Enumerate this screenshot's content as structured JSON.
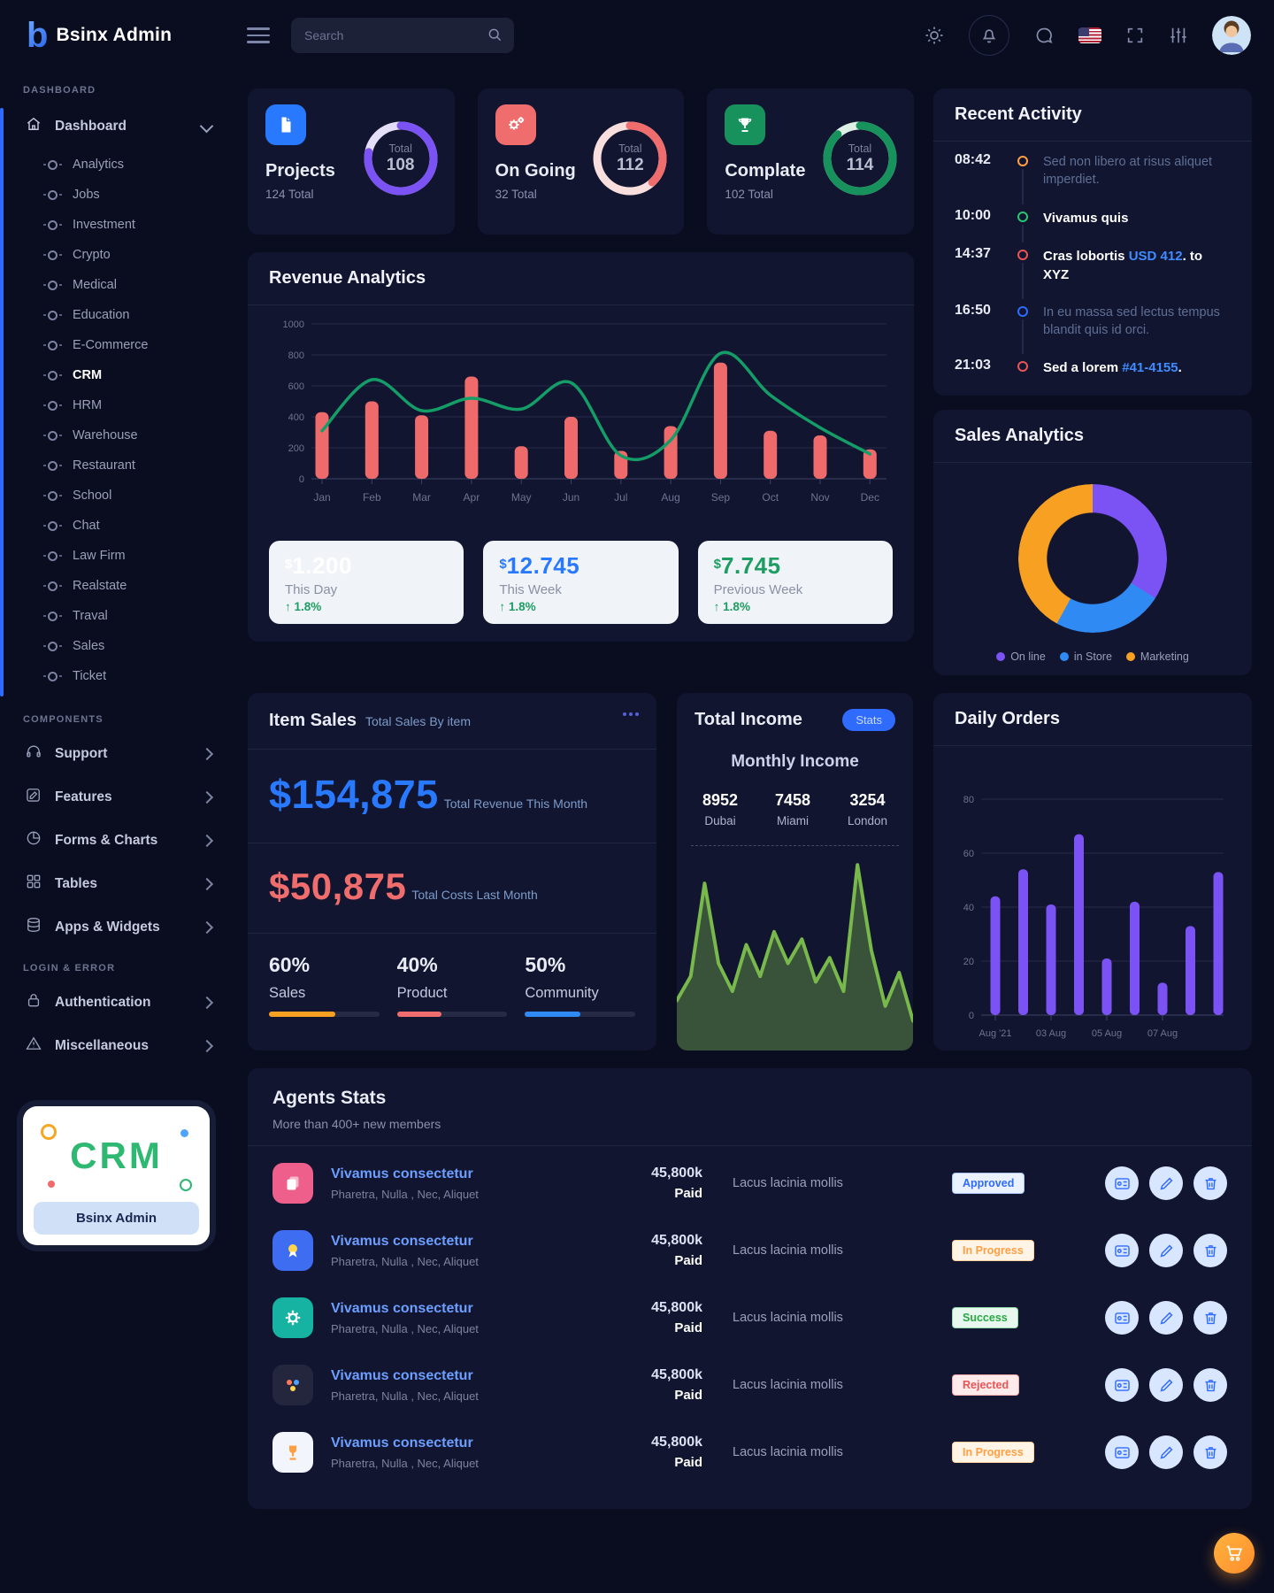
{
  "topbar": {
    "logo_letter": "b",
    "logo_text": "Bsinx Admin",
    "search_placeholder": "Search"
  },
  "sidebar": {
    "section_dashboard": "DASHBOARD",
    "dashboard_label": "Dashboard",
    "dashboard_items": [
      "Analytics",
      "Jobs",
      "Investment",
      "Crypto",
      "Medical",
      "Education",
      "E-Commerce",
      "CRM",
      "HRM",
      "Warehouse",
      "Restaurant",
      "School",
      "Chat",
      "Law Firm",
      "Realstate",
      "Traval",
      "Sales",
      "Ticket"
    ],
    "active_item": "CRM",
    "section_components": "COMPONENTS",
    "component_items": [
      "Support",
      "Features",
      "Forms & Charts",
      "Tables",
      "Apps & Widgets"
    ],
    "section_login": "LOGIN & ERROR",
    "login_items": [
      "Authentication",
      "Miscellaneous"
    ],
    "promo_title": "CRM",
    "promo_caption": "Bsinx Admin"
  },
  "stat_cards": [
    {
      "title": "Projects",
      "subtitle": "124 Total",
      "donut_label": "Total",
      "donut_value": "108",
      "color": "#7b52f4",
      "track": "#e4def9",
      "icon_bg": "#2979ff",
      "percent": 78
    },
    {
      "title": "On Going",
      "subtitle": "32 Total",
      "donut_label": "Total",
      "donut_value": "112",
      "color": "#f06d6d",
      "track": "#f9dede",
      "icon_bg": "#f06d6d",
      "percent": 38
    },
    {
      "title": "Complate",
      "subtitle": "102 Total",
      "donut_label": "Total",
      "donut_value": "114",
      "color": "#18925c",
      "track": "#def0e6",
      "icon_bg": "#18925c",
      "percent": 88
    }
  ],
  "revenue": {
    "title": "Revenue Analytics",
    "chart": {
      "type": "bar+line",
      "months": [
        "Jan",
        "Feb",
        "Mar",
        "Apr",
        "May",
        "Jun",
        "Jul",
        "Aug",
        "Sep",
        "Oct",
        "Nov",
        "Dec"
      ],
      "yticks": [
        0,
        200,
        400,
        600,
        800,
        1000
      ],
      "bars": [
        430,
        500,
        410,
        660,
        210,
        400,
        180,
        340,
        750,
        310,
        280,
        190
      ],
      "line": [
        310,
        640,
        440,
        520,
        450,
        620,
        150,
        250,
        810,
        540,
        330,
        160
      ],
      "bar_color": "#ef6b6b",
      "line_color": "#159d68"
    },
    "boxes": [
      {
        "currency": "$",
        "value": "1.200",
        "label": "This Day",
        "arrow": "↑",
        "change": "1.8%",
        "color": "#ffffff"
      },
      {
        "currency": "$",
        "value": "12.745",
        "label": "This Week",
        "arrow": "↑",
        "change": "1.8%",
        "color": "#2979ff"
      },
      {
        "currency": "$",
        "value": "7.745",
        "label": "Previous Week",
        "arrow": "↑",
        "change": "1.8%",
        "color": "#1d9d61"
      }
    ]
  },
  "recent_activity": {
    "title": "Recent Activity",
    "items": [
      {
        "time": "08:42",
        "color": "#ff9f43",
        "pre": "Sed non libero at risus aliquet imperdiet.",
        "link": "",
        "post": ""
      },
      {
        "time": "10:00",
        "color": "#28c76f",
        "pre": "Vivamus quis",
        "link": "",
        "post": ""
      },
      {
        "time": "14:37",
        "color": "#ea5455",
        "pre": "Cras lobortis ",
        "link": "USD 412",
        "post": ". to XYZ"
      },
      {
        "time": "16:50",
        "color": "#2f6bff",
        "pre": "In eu massa sed lectus tempus blandit quis id orci.",
        "link": "",
        "post": ""
      },
      {
        "time": "21:03",
        "color": "#ea5455",
        "pre": "Sed a lorem ",
        "link": "#41-4155",
        "post": "."
      }
    ]
  },
  "sales_analytics": {
    "title": "Sales Analytics",
    "type": "donut",
    "slices": [
      {
        "label": "On line",
        "color": "#7b52f4",
        "value": 34
      },
      {
        "label": "in Store",
        "color": "#2f8bf3",
        "value": 24
      },
      {
        "label": "Marketing",
        "color": "#f8a021",
        "value": 42
      }
    ]
  },
  "item_sales": {
    "title": "Item Sales",
    "subtitle": "Total Sales By item",
    "revenue_amount": "$154,875",
    "revenue_caption": "Total Revenue This Month",
    "costs_amount": "$50,875",
    "costs_caption": "Total Costs Last Month",
    "metrics": [
      {
        "pct": "60%",
        "label": "Sales",
        "color": "#f8a021"
      },
      {
        "pct": "40%",
        "label": "Product",
        "color": "#f06d6d"
      },
      {
        "pct": "50%",
        "label": "Community",
        "color": "#2f8bf3"
      }
    ]
  },
  "total_income": {
    "title": "Total Income",
    "badge": "Stats",
    "subtitle": "Monthly Income",
    "cities": [
      {
        "value": "8952",
        "label": "Dubai"
      },
      {
        "value": "7458",
        "label": "Miami"
      },
      {
        "value": "3254",
        "label": "London"
      }
    ],
    "area": {
      "type": "area",
      "values": [
        25,
        38,
        88,
        45,
        30,
        55,
        38,
        62,
        45,
        58,
        35,
        48,
        30,
        98,
        52,
        22,
        40,
        14
      ],
      "line_color": "#79b94c",
      "fill_color": "rgba(121,185,76,0.38)"
    }
  },
  "daily_orders": {
    "title": "Daily Orders",
    "type": "bar",
    "yticks": [
      0,
      20,
      40,
      60,
      80
    ],
    "x_labels": [
      "Aug '21",
      "03 Aug",
      "05 Aug",
      "07 Aug"
    ],
    "values": [
      44,
      54,
      41,
      67,
      21,
      42,
      12,
      33,
      53
    ],
    "bar_color": "#7b52f4"
  },
  "agents": {
    "title": "Agents Stats",
    "subtitle": "More than 400+ new members",
    "rows": [
      {
        "name": "Vivamus consectetur",
        "detail": "Pharetra, Nulla , Nec, Aliquet",
        "amount": "45,800k",
        "amount_label": "Paid",
        "note": "Lacus lacinia mollis",
        "icon_bg": "#ef5f8c",
        "status": {
          "label": "Approved",
          "fg": "#2f6bff",
          "bg": "#eaf1ff",
          "border": "#a9c4ff"
        }
      },
      {
        "name": "Vivamus consectetur",
        "detail": "Pharetra, Nulla , Nec, Aliquet",
        "amount": "45,800k",
        "amount_label": "Paid",
        "note": "Lacus lacinia mollis",
        "icon_bg": "#3f6df2",
        "status": {
          "label": "In Progress",
          "fg": "#ff9f43",
          "bg": "#fff4e6",
          "border": "#ffd29e"
        }
      },
      {
        "name": "Vivamus consectetur",
        "detail": "Pharetra, Nulla , Nec, Aliquet",
        "amount": "45,800k",
        "amount_label": "Paid",
        "note": "Lacus lacinia mollis",
        "icon_bg": "#16b3a2",
        "status": {
          "label": "Success",
          "fg": "#28a745",
          "bg": "#e9f8ee",
          "border": "#93dcaa"
        }
      },
      {
        "name": "Vivamus consectetur",
        "detail": "Pharetra, Nulla , Nec, Aliquet",
        "amount": "45,800k",
        "amount_label": "Paid",
        "note": "Lacus lacinia mollis",
        "icon_bg": "#23263d",
        "status": {
          "label": "Rejected",
          "fg": "#ea5455",
          "bg": "#ffebeb",
          "border": "#f5a8a9"
        }
      },
      {
        "name": "Vivamus consectetur",
        "detail": "Pharetra, Nulla , Nec, Aliquet",
        "amount": "45,800k",
        "amount_label": "Paid",
        "note": "Lacus lacinia mollis",
        "icon_bg": "#f3f5fd",
        "status": {
          "label": "In Progress",
          "fg": "#ff9f43",
          "bg": "#fff4e6",
          "border": "#ffd29e"
        }
      }
    ]
  }
}
